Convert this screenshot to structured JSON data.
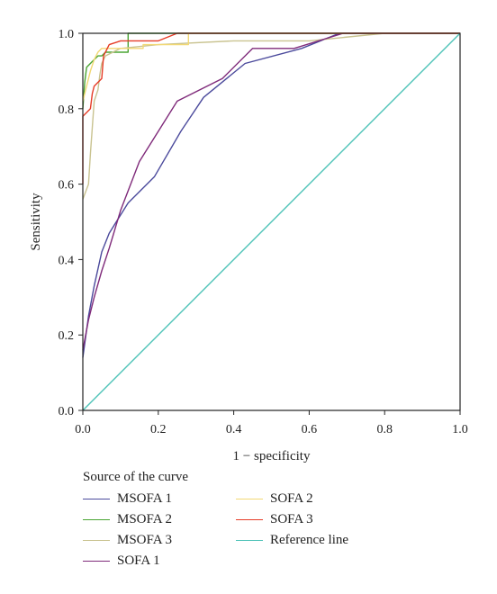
{
  "chart_data": {
    "type": "line",
    "title": "",
    "xlabel": "1 − specificity",
    "ylabel": "Sensitivity",
    "xlim": [
      0,
      1
    ],
    "ylim": [
      0,
      1
    ],
    "xticks": [
      "0.0",
      "0.2",
      "0.4",
      "0.6",
      "0.8",
      "1.0"
    ],
    "yticks": [
      "0.0",
      "0.2",
      "0.4",
      "0.6",
      "0.8",
      "1.0"
    ],
    "grid": false,
    "legend_title": "Source of the curve",
    "legend_placement": "bottom",
    "series": [
      {
        "name": "MSOFA 1",
        "color": "#4b4a9c",
        "points": [
          [
            0,
            0.14
          ],
          [
            0.015,
            0.25
          ],
          [
            0.03,
            0.33
          ],
          [
            0.05,
            0.42
          ],
          [
            0.07,
            0.47
          ],
          [
            0.12,
            0.55
          ],
          [
            0.19,
            0.62
          ],
          [
            0.26,
            0.74
          ],
          [
            0.32,
            0.83
          ],
          [
            0.43,
            0.92
          ],
          [
            0.58,
            0.96
          ],
          [
            0.68,
            1.0
          ],
          [
            1,
            1
          ]
        ]
      },
      {
        "name": "MSOFA 2",
        "color": "#4aa534",
        "points": [
          [
            0,
            0.8
          ],
          [
            0.005,
            0.87
          ],
          [
            0.01,
            0.91
          ],
          [
            0.02,
            0.92
          ],
          [
            0.03,
            0.93
          ],
          [
            0.04,
            0.94
          ],
          [
            0.05,
            0.94
          ],
          [
            0.06,
            0.95
          ],
          [
            0.12,
            0.95
          ],
          [
            0.12,
            1.0
          ],
          [
            1,
            1
          ]
        ]
      },
      {
        "name": "MSOFA 3",
        "color": "#c9c390",
        "points": [
          [
            0,
            0.56
          ],
          [
            0.015,
            0.6
          ],
          [
            0.02,
            0.68
          ],
          [
            0.025,
            0.75
          ],
          [
            0.03,
            0.82
          ],
          [
            0.04,
            0.85
          ],
          [
            0.045,
            0.89
          ],
          [
            0.05,
            0.92
          ],
          [
            0.06,
            0.94
          ],
          [
            0.1,
            0.96
          ],
          [
            0.2,
            0.97
          ],
          [
            0.4,
            0.98
          ],
          [
            0.6,
            0.98
          ],
          [
            0.8,
            1.0
          ],
          [
            1,
            1
          ]
        ]
      },
      {
        "name": "SOFA 1",
        "color": "#7f2a7a",
        "points": [
          [
            0,
            0.16
          ],
          [
            0.015,
            0.24
          ],
          [
            0.03,
            0.3
          ],
          [
            0.05,
            0.37
          ],
          [
            0.07,
            0.43
          ],
          [
            0.1,
            0.53
          ],
          [
            0.15,
            0.66
          ],
          [
            0.25,
            0.82
          ],
          [
            0.37,
            0.88
          ],
          [
            0.45,
            0.96
          ],
          [
            0.56,
            0.96
          ],
          [
            0.69,
            1.0
          ],
          [
            1,
            1
          ]
        ]
      },
      {
        "name": "SOFA 2",
        "color": "#f2d874",
        "points": [
          [
            0,
            0.82
          ],
          [
            0.01,
            0.86
          ],
          [
            0.02,
            0.9
          ],
          [
            0.03,
            0.93
          ],
          [
            0.04,
            0.95
          ],
          [
            0.05,
            0.96
          ],
          [
            0.16,
            0.96
          ],
          [
            0.16,
            0.97
          ],
          [
            0.28,
            0.97
          ],
          [
            0.28,
            1.0
          ],
          [
            1,
            1
          ]
        ]
      },
      {
        "name": "SOFA 3",
        "color": "#e63c27",
        "points": [
          [
            0,
            0.6
          ],
          [
            0,
            0.78
          ],
          [
            0.01,
            0.79
          ],
          [
            0.02,
            0.8
          ],
          [
            0.025,
            0.84
          ],
          [
            0.03,
            0.86
          ],
          [
            0.04,
            0.87
          ],
          [
            0.05,
            0.88
          ],
          [
            0.055,
            0.94
          ],
          [
            0.06,
            0.95
          ],
          [
            0.07,
            0.97
          ],
          [
            0.1,
            0.98
          ],
          [
            0.15,
            0.98
          ],
          [
            0.2,
            0.98
          ],
          [
            0.25,
            1.0
          ],
          [
            1,
            1
          ]
        ]
      },
      {
        "name": "Reference line",
        "color": "#4fc3b8",
        "points": [
          [
            0,
            0
          ],
          [
            1,
            1
          ]
        ]
      }
    ]
  }
}
